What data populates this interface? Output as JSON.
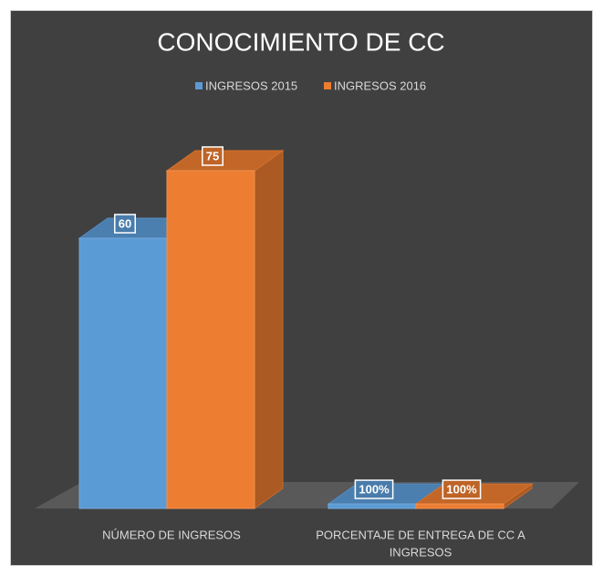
{
  "chart_data": {
    "type": "bar3d",
    "title": "CONOCIMIENTO DE CC",
    "categories": [
      [
        "NÚMERO DE INGRESOS"
      ],
      [
        "PORCENTAJE DE ENTREGA DE CC A",
        "INGRESOS"
      ]
    ],
    "series": [
      {
        "name": "INGRESOS 2015",
        "color": "#5b9bd5",
        "values": [
          60,
          1
        ],
        "value_labels": [
          "60",
          "100%"
        ]
      },
      {
        "name": "INGRESOS 2016",
        "color": "#ed7d31",
        "values": [
          75,
          1
        ],
        "value_labels": [
          "75",
          "100%"
        ]
      }
    ],
    "legend": "top"
  }
}
